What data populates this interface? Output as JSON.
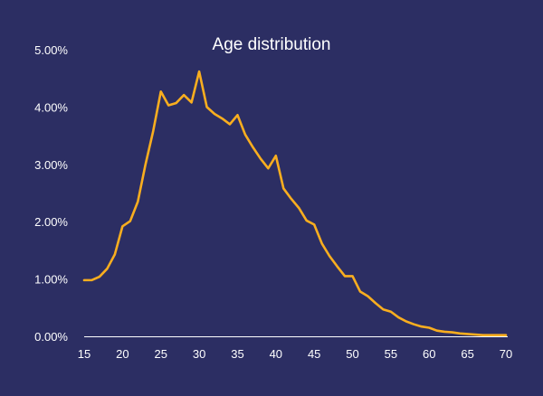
{
  "chart_data": {
    "type": "line",
    "title": "Age distribution",
    "xlabel": "",
    "ylabel": "",
    "xlim": [
      15,
      70
    ],
    "ylim": [
      0,
      5
    ],
    "grid": false,
    "legend": "none",
    "x_ticks": [
      "15",
      "20",
      "25",
      "30",
      "35",
      "40",
      "45",
      "50",
      "55",
      "60",
      "65",
      "70"
    ],
    "y_ticks": [
      "0.00%",
      "1.00%",
      "2.00%",
      "3.00%",
      "4.00%",
      "5.00%"
    ],
    "y_unit": "percent",
    "series": [
      {
        "color": "#f9ae1f",
        "x": [
          15,
          16,
          17,
          18,
          19,
          20,
          21,
          22,
          23,
          24,
          25,
          26,
          27,
          28,
          29,
          30,
          31,
          32,
          33,
          34,
          35,
          36,
          37,
          38,
          39,
          40,
          41,
          42,
          43,
          44,
          45,
          46,
          47,
          48,
          49,
          50,
          51,
          52,
          53,
          54,
          55,
          56,
          57,
          58,
          59,
          60,
          61,
          62,
          63,
          64,
          65,
          66,
          67,
          68,
          69,
          70
        ],
        "values": [
          0.98,
          0.98,
          1.04,
          1.18,
          1.43,
          1.92,
          2.01,
          2.35,
          3.0,
          3.58,
          4.27,
          4.03,
          4.07,
          4.21,
          4.08,
          4.62,
          4.0,
          3.88,
          3.8,
          3.7,
          3.86,
          3.52,
          3.3,
          3.1,
          2.93,
          3.15,
          2.58,
          2.4,
          2.24,
          2.02,
          1.95,
          1.62,
          1.4,
          1.22,
          1.05,
          1.05,
          0.78,
          0.7,
          0.58,
          0.47,
          0.43,
          0.33,
          0.26,
          0.21,
          0.17,
          0.15,
          0.1,
          0.08,
          0.07,
          0.05,
          0.04,
          0.03,
          0.02,
          0.02,
          0.02,
          0.02
        ]
      }
    ]
  },
  "colors": {
    "background": "#2c2e63",
    "line": "#f9ae1f",
    "axis": "#ffffff",
    "text": "#ffffff"
  }
}
